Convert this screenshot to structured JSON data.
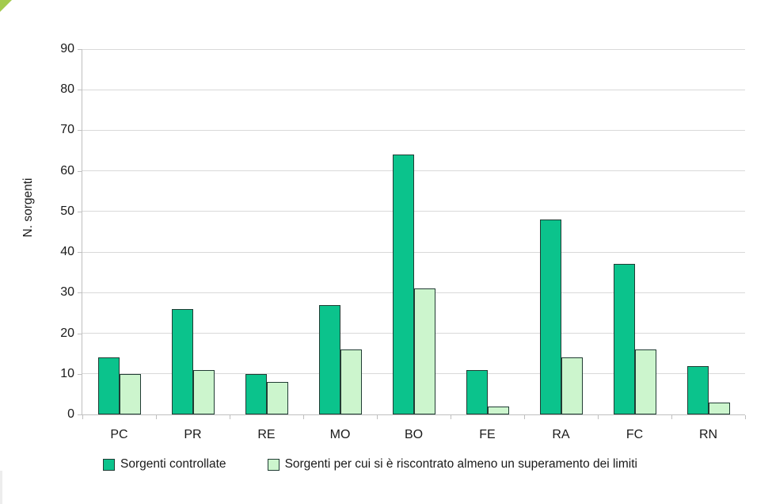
{
  "page": {
    "background": "#ffffff",
    "corner_decoration_color": "#a3cb4d"
  },
  "chart_data": {
    "type": "bar",
    "title": "",
    "xlabel": "",
    "ylabel": "N. sorgenti",
    "categories": [
      "PC",
      "PR",
      "RE",
      "MO",
      "BO",
      "FE",
      "RA",
      "FC",
      "RN"
    ],
    "series": [
      {
        "name": "Sorgenti controllate",
        "color": "#0bc38c",
        "values": [
          14,
          26,
          10,
          27,
          64,
          11,
          48,
          37,
          12
        ]
      },
      {
        "name": "Sorgenti per cui si è riscontrato almeno un superamento dei limiti",
        "color": "#ccf5cd",
        "values": [
          10,
          11,
          8,
          16,
          31,
          2,
          14,
          16,
          3
        ]
      }
    ],
    "ylim": [
      0,
      90
    ],
    "yticks": [
      0,
      10,
      20,
      30,
      40,
      50,
      60,
      70,
      80,
      90
    ],
    "grid": "horizontal",
    "gridline_color": "#d9d9d9",
    "axis_color": "#bfbfbf",
    "bar_outline_color": "#213c34",
    "text_color": "#1a1a1a",
    "legend_position": "bottom"
  }
}
